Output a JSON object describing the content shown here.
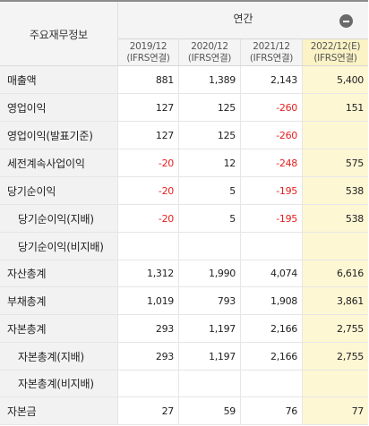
{
  "header": {
    "label_col": "주요재무정보",
    "period_group": "연간",
    "toggle_icon": "minus-circle-icon",
    "years": [
      {
        "year": "2019/12",
        "basis": "(IFRS연결)"
      },
      {
        "year": "2020/12",
        "basis": "(IFRS연결)"
      },
      {
        "year": "2021/12",
        "basis": "(IFRS연결)"
      },
      {
        "year": "2022/12(E)",
        "basis": "(IFRS연결)"
      }
    ]
  },
  "rows": [
    {
      "label": "매출액",
      "values": [
        "881",
        "1,389",
        "2,143",
        "5,400"
      ]
    },
    {
      "label": "영업이익",
      "values": [
        "127",
        "125",
        "-260",
        "151"
      ]
    },
    {
      "label": "영업이익(발표기준)",
      "values": [
        "127",
        "125",
        "-260",
        ""
      ]
    },
    {
      "label": "세전계속사업이익",
      "values": [
        "-20",
        "12",
        "-248",
        "575"
      ]
    },
    {
      "label": "당기순이익",
      "values": [
        "-20",
        "5",
        "-195",
        "538"
      ]
    },
    {
      "label": "당기순이익(지배)",
      "values": [
        "-20",
        "5",
        "-195",
        "538"
      ]
    },
    {
      "label": "당기순이익(비지배)",
      "values": [
        "",
        "",
        "",
        ""
      ]
    },
    {
      "label": "자산총계",
      "values": [
        "1,312",
        "1,990",
        "4,074",
        "6,616"
      ]
    },
    {
      "label": "부채총계",
      "values": [
        "1,019",
        "793",
        "1,908",
        "3,861"
      ]
    },
    {
      "label": "자본총계",
      "values": [
        "293",
        "1,197",
        "2,166",
        "2,755"
      ]
    },
    {
      "label": "자본총계(지배)",
      "values": [
        "293",
        "1,197",
        "2,166",
        "2,755"
      ]
    },
    {
      "label": "자본총계(비지배)",
      "values": [
        "",
        "",
        "",
        ""
      ]
    },
    {
      "label": "자본금",
      "values": [
        "27",
        "59",
        "76",
        "77"
      ]
    }
  ],
  "colors": {
    "negative": "#e61e1e",
    "estimate_bg": "#fdf7d4",
    "label_bg": "#f2f2f2"
  }
}
